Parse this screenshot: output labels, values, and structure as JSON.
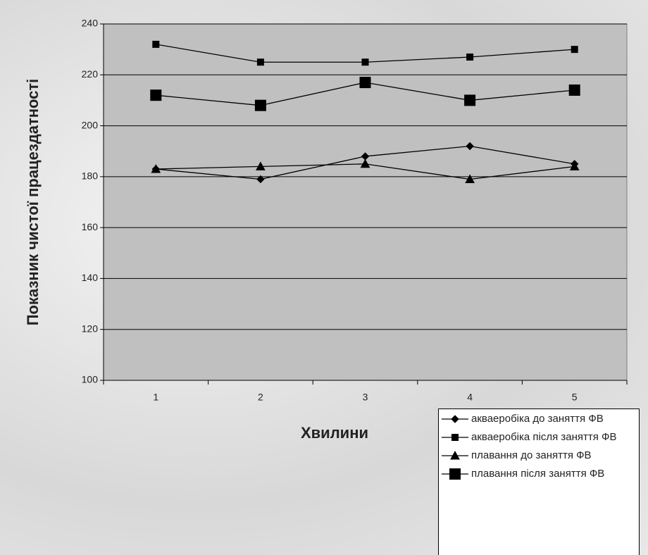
{
  "chart_data": {
    "type": "line",
    "y_label": "Показник чистої працездатності",
    "x_label": "Хвилини",
    "categories": [
      "1",
      "2",
      "3",
      "4",
      "5"
    ],
    "series": [
      {
        "name": "акваеробіка до заняття ФВ",
        "color": "#000000",
        "marker": "diamond",
        "values": [
          183,
          179,
          188,
          192,
          185
        ]
      },
      {
        "name": "акваеробіка після заняття ФВ",
        "color": "#000000",
        "marker": "square",
        "values": [
          232,
          225,
          225,
          227,
          230
        ]
      },
      {
        "name": "плавання до заняття ФВ",
        "color": "#000000",
        "marker": "triangle",
        "values": [
          183,
          184,
          185,
          179,
          184
        ]
      },
      {
        "name": "плавання після заняття ФВ",
        "color": "#000000",
        "marker": "big-square",
        "values": [
          212,
          208,
          217,
          210,
          214
        ]
      }
    ],
    "ylim": [
      100,
      240
    ],
    "yticks": [
      100,
      120,
      140,
      160,
      180,
      200,
      220,
      240
    ],
    "grid": true,
    "plot_background": "#c0c0c0",
    "legend": "bottom-right"
  }
}
